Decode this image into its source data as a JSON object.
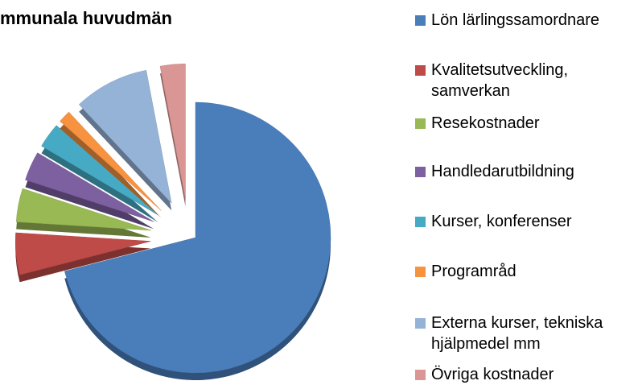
{
  "chart_data": {
    "type": "pie",
    "title": "mmunala huvudmän",
    "categories": [
      "Lön lärlingssamordnare",
      "Kvalitetsutveckling, samverkan",
      "Resekostnader",
      "Handledarutbildning",
      "Kurser, konferenser",
      "Programråd",
      "Externa kurser, tekniska hjälpmedel mm",
      "Övriga kostnader"
    ],
    "values": [
      71,
      5,
      4,
      3.5,
      3,
      1.5,
      9,
      3
    ],
    "colors": [
      "#4a7ebb",
      "#be4b48",
      "#98b954",
      "#7d60a0",
      "#46aac5",
      "#f69240",
      "#95b3d7",
      "#d99694"
    ],
    "legend": "right"
  }
}
